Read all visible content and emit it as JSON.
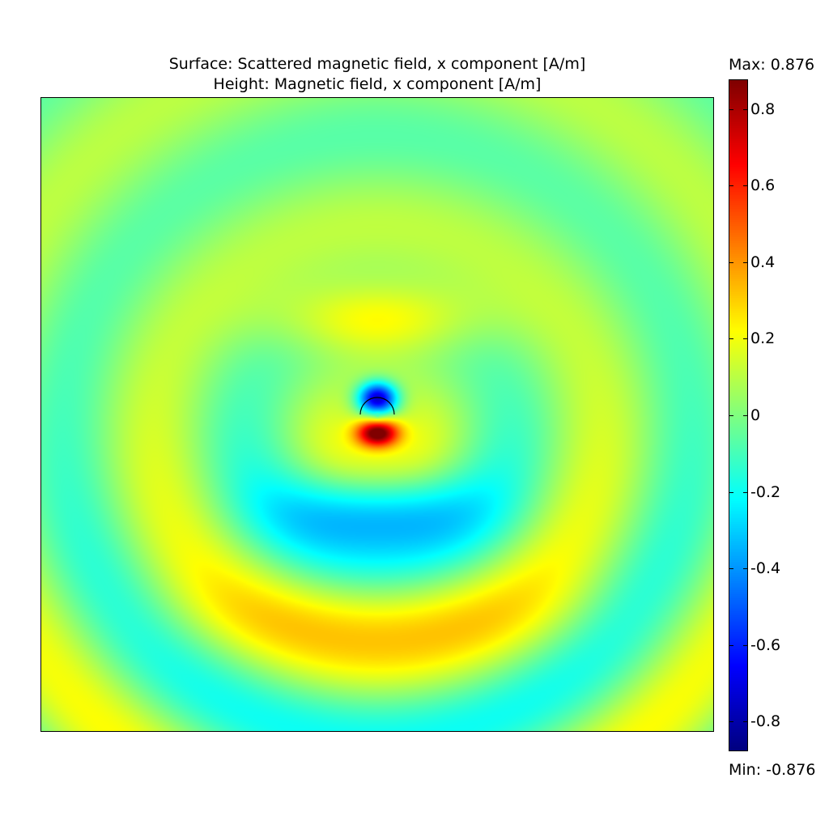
{
  "chart_data": {
    "type": "heatmap",
    "title_line_1": "Surface: Scattered magnetic field, x component [A/m]",
    "title_line_2": "Height: Magnetic field, x component [A/m]",
    "colorbar": {
      "max_label": "Max: 0.876",
      "min_label": "Min: -0.876",
      "max": 0.876,
      "min": -0.876,
      "ticks": [
        0.8,
        0.6,
        0.4,
        0.2,
        0,
        -0.2,
        -0.4,
        -0.6,
        -0.8
      ],
      "tick_labels": [
        "0.8",
        "0.6",
        "0.4",
        "0.2",
        "0",
        "-0.2",
        "-0.4",
        "-0.6",
        "-0.8"
      ],
      "colormap": "jet"
    },
    "field_pattern": "concentric rings around a small semicircular scatterer; strong negative lobe above the scatterer, strong positive lobe below it",
    "colors": {
      "outline": "#000000",
      "background": "#ffffff"
    }
  }
}
